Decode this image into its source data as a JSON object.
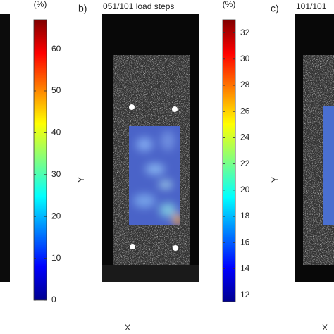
{
  "chart_data": [
    {
      "type": "colorbar",
      "label": "(%)",
      "colormap": "jet",
      "ylim": [
        0,
        67
      ],
      "yticks": [
        0,
        10,
        20,
        30,
        40,
        50,
        60
      ]
    },
    {
      "type": "colorbar",
      "label": "(%)",
      "colormap": "jet",
      "ylim": [
        11.5,
        33
      ],
      "yticks": [
        12,
        14,
        16,
        18,
        20,
        22,
        24,
        26,
        28,
        30,
        32
      ]
    }
  ],
  "panels": [
    {
      "label": "b)",
      "title": "051/101 load steps",
      "x_label": "X",
      "y_label": "Y"
    },
    {
      "label": "c)",
      "title": "101/101",
      "x_label": "X",
      "y_label": "Y"
    }
  ]
}
